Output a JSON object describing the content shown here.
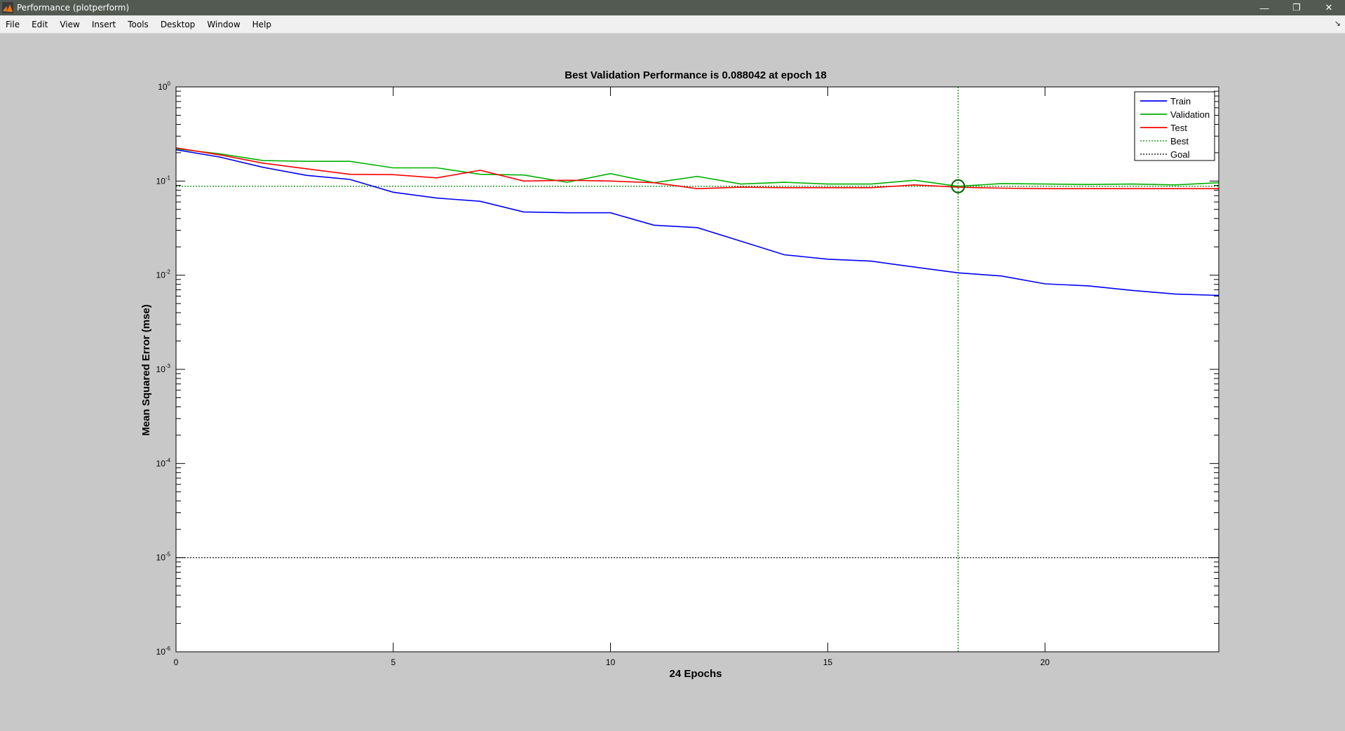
{
  "window": {
    "title": "Performance (plotperform)",
    "controls": [
      "minimize-icon",
      "restore-icon",
      "close-icon"
    ]
  },
  "menubar": {
    "items": [
      "File",
      "Edit",
      "View",
      "Insert",
      "Tools",
      "Desktop",
      "Window",
      "Help"
    ]
  },
  "chart_data": {
    "type": "line",
    "title": "Best Validation Performance is 0.088042 at epoch 18",
    "xlabel": "24 Epochs",
    "ylabel": "Mean Squared Error  (mse)",
    "xlim": [
      0,
      24
    ],
    "ylim": [
      1e-06,
      1
    ],
    "yscale": "log",
    "xticks": [
      0,
      5,
      10,
      15,
      20
    ],
    "yticks": [
      {
        "exp": "0",
        "value": 1
      },
      {
        "exp": "-1",
        "value": 0.1
      },
      {
        "exp": "-2",
        "value": 0.01
      },
      {
        "exp": "-3",
        "value": 0.001
      },
      {
        "exp": "-4",
        "value": 0.0001
      },
      {
        "exp": "-5",
        "value": 1e-05
      },
      {
        "exp": "-6",
        "value": 1e-06
      }
    ],
    "grid": false,
    "legend": "top-right",
    "x": [
      0,
      1,
      2,
      3,
      4,
      5,
      6,
      7,
      8,
      9,
      10,
      11,
      12,
      13,
      14,
      15,
      16,
      17,
      18,
      19,
      20,
      21,
      22,
      23,
      24
    ],
    "series": [
      {
        "name": "Train",
        "color": "#0000ff",
        "style": "solid",
        "values": [
          0.215,
          0.18,
          0.14,
          0.115,
          0.104,
          0.076,
          0.066,
          0.061,
          0.047,
          0.046,
          0.046,
          0.034,
          0.032,
          0.023,
          0.0165,
          0.0148,
          0.0141,
          0.0122,
          0.0106,
          0.0098,
          0.0081,
          0.0077,
          0.0069,
          0.0063,
          0.0061
        ]
      },
      {
        "name": "Validation",
        "color": "#00b000",
        "style": "solid",
        "values": [
          0.22,
          0.195,
          0.165,
          0.162,
          0.162,
          0.138,
          0.138,
          0.118,
          0.116,
          0.097,
          0.12,
          0.096,
          0.112,
          0.093,
          0.097,
          0.093,
          0.093,
          0.102,
          0.088042,
          0.094,
          0.093,
          0.092,
          0.093,
          0.091,
          0.096
        ]
      },
      {
        "name": "Test",
        "color": "#ff0000",
        "style": "solid",
        "values": [
          0.225,
          0.19,
          0.155,
          0.135,
          0.118,
          0.117,
          0.108,
          0.13,
          0.1,
          0.102,
          0.1,
          0.096,
          0.083,
          0.086,
          0.085,
          0.085,
          0.085,
          0.091,
          0.086,
          0.084,
          0.083,
          0.083,
          0.083,
          0.083,
          0.083
        ]
      },
      {
        "name": "Best",
        "color": "#008000",
        "style": "dotted",
        "best_epoch": 18,
        "best_value": 0.088042
      },
      {
        "name": "Goal",
        "color": "#000000",
        "style": "dotted",
        "goal_value": 1e-05
      }
    ]
  }
}
